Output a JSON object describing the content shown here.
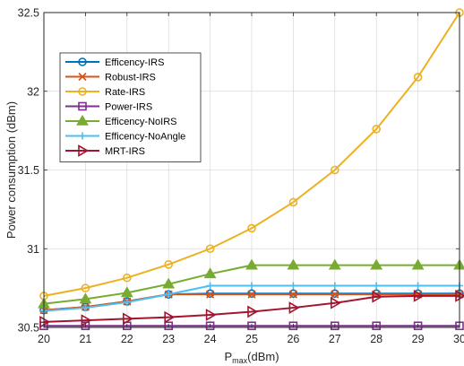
{
  "chart_data": {
    "type": "line",
    "title": "",
    "xlabel_main": "P",
    "xlabel_sub": "max",
    "xlabel_unit": "(dBm)",
    "ylabel": "Power consumption (dBm)",
    "x": [
      20,
      21,
      22,
      23,
      24,
      25,
      26,
      27,
      28,
      29,
      30
    ],
    "xlim": [
      20,
      30
    ],
    "ylim": [
      30.5,
      32.5
    ],
    "xticks": [
      "20",
      "21",
      "22",
      "23",
      "24",
      "25",
      "26",
      "27",
      "28",
      "29",
      "30"
    ],
    "yticks": [
      "30.5",
      "31",
      "31.5",
      "32",
      "32.5"
    ],
    "ytick_values": [
      30.5,
      31,
      31.5,
      32,
      32.5
    ],
    "grid": true,
    "legend_position": "upper-left",
    "series": [
      {
        "name": "Efficency-IRS",
        "color": "#0072BD",
        "marker": "circle",
        "values": [
          30.61,
          30.63,
          30.665,
          30.71,
          30.715,
          30.715,
          30.715,
          30.715,
          30.715,
          30.715,
          30.715
        ]
      },
      {
        "name": "Robust-IRS",
        "color": "#D95319",
        "marker": "x",
        "values": [
          30.61,
          30.63,
          30.665,
          30.71,
          30.71,
          30.71,
          30.71,
          30.71,
          30.71,
          30.71,
          30.71
        ]
      },
      {
        "name": "Rate-IRS",
        "color": "#EDB120",
        "marker": "circle",
        "values": [
          30.7,
          30.75,
          30.815,
          30.9,
          31.0,
          31.13,
          31.295,
          31.5,
          31.76,
          32.09,
          32.5
        ]
      },
      {
        "name": "Power-IRS",
        "color": "#7E2F8E",
        "marker": "square",
        "values": [
          30.51,
          30.51,
          30.51,
          30.51,
          30.51,
          30.51,
          30.51,
          30.51,
          30.51,
          30.51,
          30.51
        ]
      },
      {
        "name": "Efficency-NoIRS",
        "color": "#77AC30",
        "marker": "triangle-up",
        "values": [
          30.65,
          30.68,
          30.72,
          30.775,
          30.84,
          30.895,
          30.895,
          30.895,
          30.895,
          30.895,
          30.895
        ]
      },
      {
        "name": "Efficency-NoAngle",
        "color": "#4DBEEE",
        "marker": "plus",
        "values": [
          30.605,
          30.625,
          30.66,
          30.71,
          30.765,
          30.765,
          30.765,
          30.765,
          30.765,
          30.765,
          30.765
        ]
      },
      {
        "name": "MRT-IRS",
        "color": "#A2142F",
        "marker": "triangle-right",
        "values": [
          30.535,
          30.545,
          30.555,
          30.565,
          30.58,
          30.6,
          30.625,
          30.655,
          30.695,
          30.7,
          30.7
        ]
      }
    ]
  }
}
